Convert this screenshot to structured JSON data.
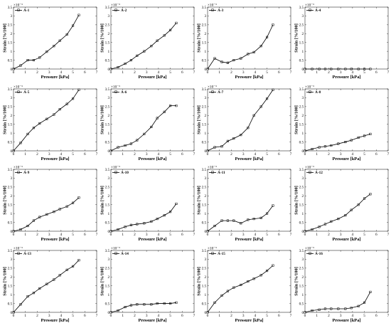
{
  "figure": {
    "x_tick_labels": [
      "0",
      "1",
      "2",
      "3",
      "4",
      "5",
      "6",
      "7"
    ],
    "y_tick_labels": [
      "0",
      "0.5",
      "1",
      "1.5",
      "2",
      "2.5",
      "3",
      "3.5"
    ]
  },
  "chart_data": [
    {
      "type": "line",
      "legend": "A-1",
      "xlabel": "Pressure [kPa]",
      "ylabel": "Strain [%/100]",
      "y_exponent_label": "×10⁻³",
      "xlim": [
        0,
        7
      ],
      "ylim": [
        0,
        3.5
      ],
      "series": [
        {
          "name": "A-1",
          "x": [
            0,
            0.6,
            1.2,
            1.7,
            2.2,
            2.8,
            3.4,
            3.9,
            4.5,
            5.0,
            5.5
          ],
          "y": [
            0,
            0.2,
            0.5,
            0.5,
            0.65,
            0.98,
            1.3,
            1.6,
            1.95,
            2.45,
            3.05
          ]
        }
      ]
    },
    {
      "type": "line",
      "legend": "A-2",
      "xlabel": "Pressure [kPa]",
      "ylabel": "Strain [%/100]",
      "y_exponent_label": "×10⁻³",
      "xlim": [
        0,
        7
      ],
      "ylim": [
        0,
        3.5
      ],
      "series": [
        {
          "name": "A-2",
          "x": [
            0,
            0.6,
            1.2,
            1.7,
            2.2,
            2.8,
            3.4,
            3.9,
            4.5,
            5.0,
            5.5
          ],
          "y": [
            0,
            0.1,
            0.3,
            0.5,
            0.75,
            1.0,
            1.3,
            1.6,
            1.9,
            2.2,
            2.6
          ]
        }
      ]
    },
    {
      "type": "line",
      "legend": "A-3",
      "xlabel": "Pressure [kPa]",
      "ylabel": "Strain [%/100]",
      "y_exponent_label": "×10⁻³",
      "xlim": [
        0,
        7
      ],
      "ylim": [
        0,
        3.5
      ],
      "series": [
        {
          "name": "A-3",
          "x": [
            0,
            0.6,
            1.2,
            1.7,
            2.2,
            2.8,
            3.4,
            3.9,
            4.5,
            5.0,
            5.5
          ],
          "y": [
            0,
            0.6,
            0.4,
            0.35,
            0.5,
            0.6,
            0.85,
            0.95,
            1.3,
            1.8,
            2.5
          ]
        }
      ]
    },
    {
      "type": "line",
      "legend": "A-4",
      "xlabel": "Pressure [kPa]",
      "ylabel": "Strain [%/100]",
      "y_exponent_label": "×10⁻³",
      "xlim": [
        0,
        7
      ],
      "ylim": [
        0,
        3.5
      ],
      "series": [
        {
          "name": "A-4",
          "x": [
            0,
            0.6,
            1.2,
            1.7,
            2.2,
            2.8,
            3.4,
            3.9,
            4.5,
            5.0,
            5.5
          ],
          "y": [
            0,
            0,
            0,
            0,
            0,
            0,
            0,
            0,
            0,
            0,
            0
          ]
        }
      ]
    },
    {
      "type": "line",
      "legend": "A-5",
      "xlabel": "Pressure [kPa]",
      "ylabel": "Strain [%/100]",
      "y_exponent_label": "×10⁻³",
      "xlim": [
        0,
        7
      ],
      "ylim": [
        0,
        3.5
      ],
      "series": [
        {
          "name": "A-5",
          "x": [
            0,
            0.6,
            1.2,
            1.7,
            2.2,
            2.8,
            3.4,
            3.9,
            4.5,
            5.0,
            5.5
          ],
          "y": [
            0,
            0.45,
            0.95,
            1.3,
            1.55,
            1.8,
            2.05,
            2.35,
            2.65,
            2.95,
            3.45
          ]
        }
      ]
    },
    {
      "type": "line",
      "legend": "A-6",
      "xlabel": "Pressure [kPa]",
      "ylabel": "Strain [%/100]",
      "y_exponent_label": "×10⁻³",
      "xlim": [
        0,
        7
      ],
      "ylim": [
        0,
        3.5
      ],
      "series": [
        {
          "name": "A-6",
          "x": [
            0,
            0.6,
            1.2,
            1.7,
            2.2,
            2.8,
            3.4,
            3.9,
            4.5,
            5.0,
            5.5
          ],
          "y": [
            0,
            0.2,
            0.3,
            0.4,
            0.6,
            0.95,
            1.35,
            1.85,
            2.2,
            2.55,
            2.55
          ]
        }
      ]
    },
    {
      "type": "line",
      "legend": "A-7",
      "xlabel": "Pressure [kPa]",
      "ylabel": "Strain [%/100]",
      "y_exponent_label": "×10⁻³",
      "xlim": [
        0,
        7
      ],
      "ylim": [
        0,
        3.5
      ],
      "series": [
        {
          "name": "A-7",
          "x": [
            0,
            0.6,
            1.2,
            1.7,
            2.2,
            2.8,
            3.4,
            3.9,
            4.5,
            5.0,
            5.5
          ],
          "y": [
            0,
            0.2,
            0.25,
            0.55,
            0.7,
            0.9,
            1.3,
            2.0,
            2.5,
            2.95,
            3.45
          ]
        }
      ]
    },
    {
      "type": "line",
      "legend": "A-8",
      "xlabel": "Pressure [kPa]",
      "ylabel": "Strain [%/100]",
      "y_exponent_label": "×10⁻³",
      "xlim": [
        0,
        7
      ],
      "ylim": [
        0,
        3.5
      ],
      "series": [
        {
          "name": "A-8",
          "x": [
            0,
            0.6,
            1.2,
            1.7,
            2.2,
            2.8,
            3.4,
            3.9,
            4.5,
            5.0,
            5.5
          ],
          "y": [
            0,
            0.1,
            0.2,
            0.25,
            0.3,
            0.4,
            0.5,
            0.6,
            0.75,
            0.85,
            0.95
          ]
        }
      ]
    },
    {
      "type": "line",
      "legend": "A-9",
      "xlabel": "Pressure [kPa]",
      "ylabel": "Strain [%/100]",
      "y_exponent_label": "×10⁻³",
      "xlim": [
        0,
        7
      ],
      "ylim": [
        0,
        3.5
      ],
      "series": [
        {
          "name": "A-9",
          "x": [
            0,
            0.6,
            1.2,
            1.7,
            2.2,
            2.8,
            3.4,
            3.9,
            4.5,
            5.0,
            5.5
          ],
          "y": [
            0,
            0.1,
            0.3,
            0.6,
            0.8,
            0.95,
            1.1,
            1.25,
            1.4,
            1.6,
            1.9
          ]
        }
      ]
    },
    {
      "type": "line",
      "legend": "A-10",
      "xlabel": "Pressure [kPa]",
      "ylabel": "Strain [%/100]",
      "y_exponent_label": "×10⁻³",
      "xlim": [
        0,
        7
      ],
      "ylim": [
        0,
        3.5
      ],
      "series": [
        {
          "name": "A-10",
          "x": [
            0,
            0.6,
            1.2,
            1.7,
            2.2,
            2.8,
            3.4,
            3.9,
            4.5,
            5.0,
            5.5
          ],
          "y": [
            0,
            0.1,
            0.25,
            0.35,
            0.4,
            0.45,
            0.55,
            0.7,
            0.9,
            1.1,
            1.55
          ]
        }
      ]
    },
    {
      "type": "line",
      "legend": "A-11",
      "xlabel": "Pressure [kPa]",
      "ylabel": "Strain [%/100]",
      "y_exponent_label": "×10⁻³",
      "xlim": [
        0,
        7
      ],
      "ylim": [
        0,
        3.5
      ],
      "series": [
        {
          "name": "A-11",
          "x": [
            0,
            0.6,
            1.2,
            1.7,
            2.2,
            2.8,
            3.4,
            3.9,
            4.5,
            5.0,
            5.5
          ],
          "y": [
            0,
            0.3,
            0.6,
            0.6,
            0.6,
            0.45,
            0.65,
            0.7,
            0.75,
            1.0,
            1.45
          ]
        }
      ]
    },
    {
      "type": "line",
      "legend": "A-12",
      "xlabel": "Pressure [kPa]",
      "ylabel": "Strain [%/100]",
      "y_exponent_label": "×10⁻³",
      "xlim": [
        0,
        7
      ],
      "ylim": [
        0,
        3.5
      ],
      "series": [
        {
          "name": "A-12",
          "x": [
            0,
            0.6,
            1.2,
            1.7,
            2.2,
            2.8,
            3.4,
            3.9,
            4.5,
            5.0,
            5.5
          ],
          "y": [
            0,
            0.1,
            0.25,
            0.4,
            0.55,
            0.7,
            0.9,
            1.2,
            1.5,
            1.85,
            2.1
          ]
        }
      ]
    },
    {
      "type": "line",
      "legend": "A-13",
      "xlabel": "Pressure [kPa]",
      "ylabel": "Strain [%/100]",
      "y_exponent_label": "×10⁻³",
      "xlim": [
        0,
        7
      ],
      "ylim": [
        0,
        3.5
      ],
      "series": [
        {
          "name": "A-13",
          "x": [
            0,
            0.6,
            1.2,
            1.7,
            2.2,
            2.8,
            3.4,
            3.9,
            4.5,
            5.0,
            5.5
          ],
          "y": [
            0,
            0.45,
            0.9,
            1.1,
            1.35,
            1.6,
            1.85,
            2.1,
            2.4,
            2.6,
            2.95
          ]
        }
      ]
    },
    {
      "type": "line",
      "legend": "A-14",
      "xlabel": "Pressure [kPa]",
      "ylabel": "Strain [%/100]",
      "y_exponent_label": "×10⁻³",
      "xlim": [
        0,
        7
      ],
      "ylim": [
        0,
        3.5
      ],
      "series": [
        {
          "name": "A-14",
          "x": [
            0,
            0.6,
            1.2,
            1.7,
            2.2,
            2.8,
            3.4,
            3.9,
            4.5,
            5.0,
            5.5
          ],
          "y": [
            0,
            0.1,
            0.3,
            0.4,
            0.45,
            0.45,
            0.45,
            0.5,
            0.5,
            0.5,
            0.55
          ]
        }
      ]
    },
    {
      "type": "line",
      "legend": "A-15",
      "xlabel": "Pressure [kPa]",
      "ylabel": "Strain [%/100]",
      "y_exponent_label": "×10⁻³",
      "xlim": [
        0,
        7
      ],
      "ylim": [
        0,
        3.5
      ],
      "series": [
        {
          "name": "A-15",
          "x": [
            0,
            0.6,
            1.2,
            1.7,
            2.2,
            2.8,
            3.4,
            3.9,
            4.5,
            5.0,
            5.5
          ],
          "y": [
            0,
            0.55,
            0.95,
            1.2,
            1.4,
            1.55,
            1.75,
            1.9,
            2.1,
            2.35,
            2.65
          ]
        }
      ]
    },
    {
      "type": "line",
      "legend": "A-16",
      "xlabel": "Pressure [kPa]",
      "ylabel": "Strain [%/100]",
      "y_exponent_label": "×10⁻³",
      "xlim": [
        0,
        7
      ],
      "ylim": [
        0,
        3.5
      ],
      "series": [
        {
          "name": "A-16",
          "x": [
            0,
            0.6,
            1.2,
            1.7,
            2.2,
            2.8,
            3.4,
            3.9,
            4.5,
            5.0,
            5.5
          ],
          "y": [
            0,
            0.1,
            0.15,
            0.2,
            0.2,
            0.2,
            0.2,
            0.25,
            0.35,
            0.55,
            1.15
          ]
        }
      ]
    }
  ]
}
